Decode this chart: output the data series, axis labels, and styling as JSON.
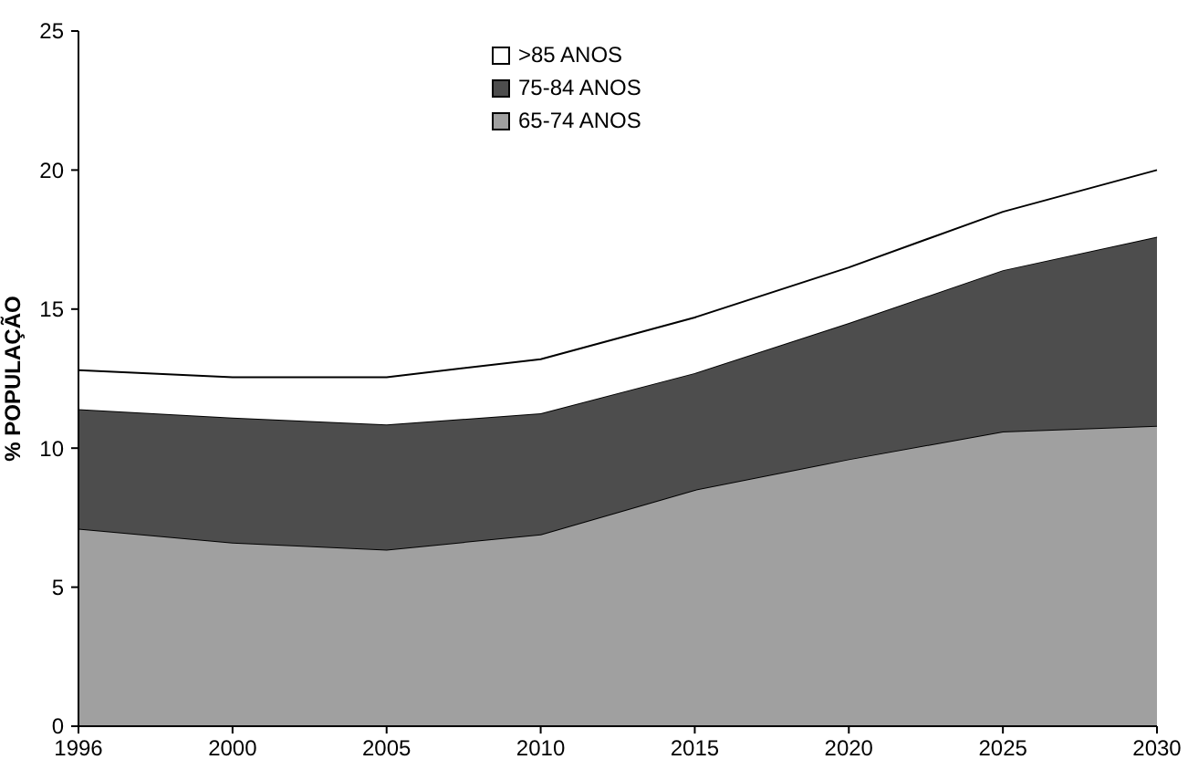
{
  "chart_data": {
    "type": "area",
    "stacked": true,
    "ylabel": "% POPULAÇÃO",
    "categories": [
      "1996",
      "2000",
      "2005",
      "2010",
      "2015",
      "2020",
      "2025",
      "2030"
    ],
    "ylim": [
      0,
      25
    ],
    "yticks": [
      0,
      5,
      10,
      15,
      20,
      25
    ],
    "grid": false,
    "legend": "top",
    "series": [
      {
        "name": "65-74 ANOS",
        "color": "#a0a0a0",
        "values": [
          7.1,
          6.6,
          6.35,
          6.9,
          8.5,
          9.6,
          10.6,
          10.8
        ]
      },
      {
        "name": "75-84 ANOS",
        "color": "#4d4d4d",
        "values": [
          4.3,
          4.5,
          4.5,
          4.35,
          4.2,
          4.9,
          5.8,
          6.8
        ]
      },
      {
        "name": ">85 ANOS",
        "color": "#ffffff",
        "values": [
          1.4,
          1.45,
          1.7,
          1.95,
          2.0,
          2.0,
          2.1,
          2.4
        ]
      }
    ]
  }
}
